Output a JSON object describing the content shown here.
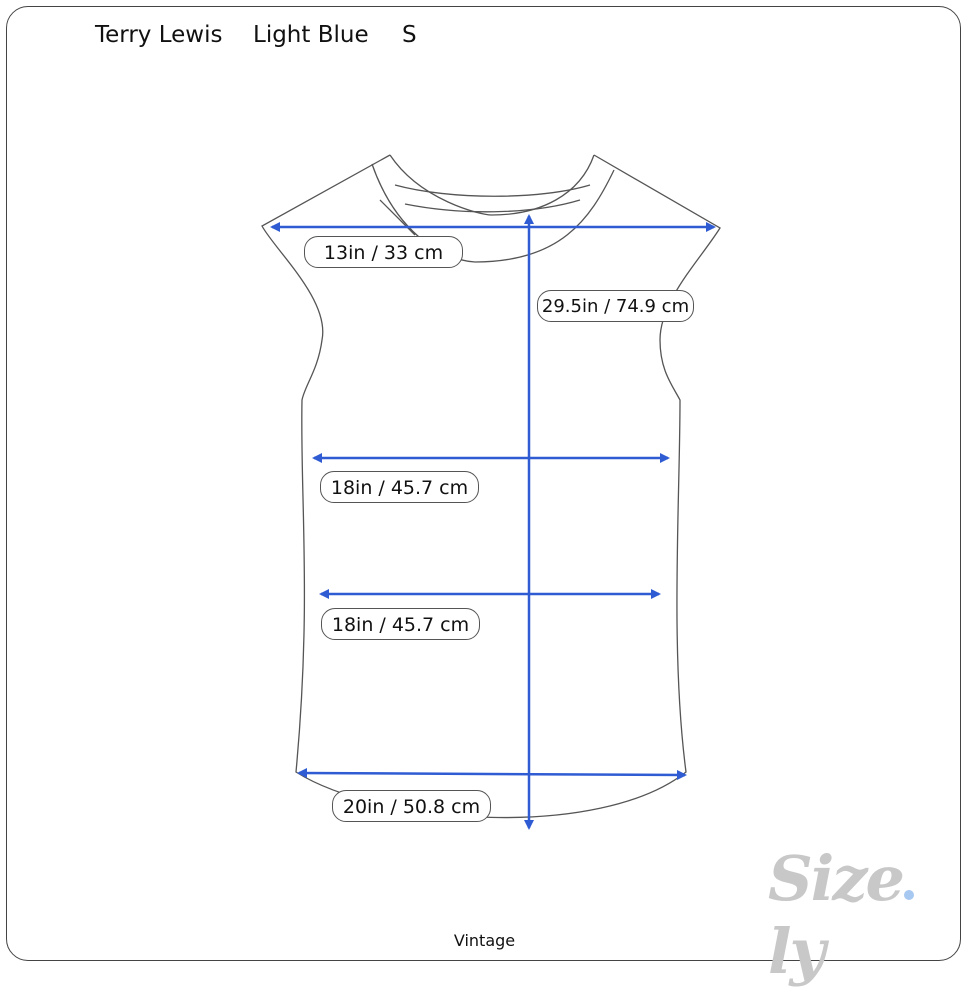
{
  "header": {
    "brand": "Terry Lewis",
    "color": "Light Blue",
    "size": "S"
  },
  "measurements": [
    {
      "name": "shoulder",
      "label": "13in / 33 cm"
    },
    {
      "name": "length",
      "label": "29.5in / 74.9 cm"
    },
    {
      "name": "chest",
      "label": "18in / 45.7 cm"
    },
    {
      "name": "waist",
      "label": "18in / 45.7 cm"
    },
    {
      "name": "hem",
      "label": "20in / 50.8 cm"
    }
  ],
  "footer": {
    "category": "Vintage"
  },
  "logo": {
    "text": "Size.ly"
  },
  "colors": {
    "arrow": "#2f5bd3",
    "outline": "#555555",
    "logo": "#c8c8c8",
    "logo_dot": "#a7c8f0"
  }
}
